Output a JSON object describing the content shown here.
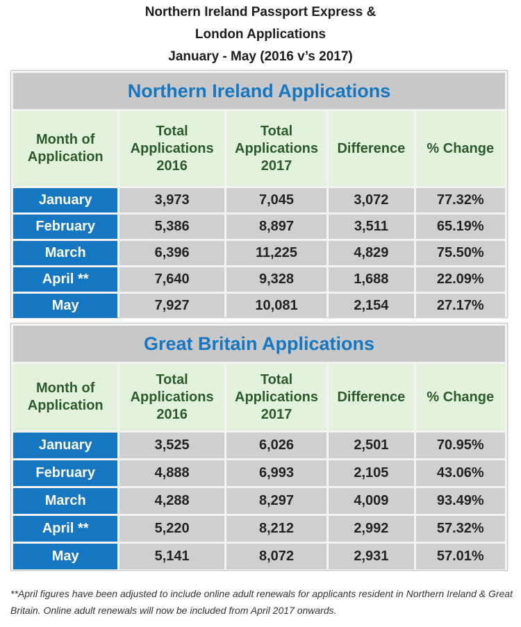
{
  "heading": {
    "line1": "Northern Ireland Passport Express &",
    "line2": "London Applications",
    "line3": "January - May (2016 v’s 2017)"
  },
  "columns": {
    "month": "Month of Application",
    "total_2016": "Total Applications 2016",
    "total_2017": "Total Applications 2017",
    "difference": "Difference",
    "pct_change": "% Change"
  },
  "tables": {
    "ni": {
      "title": "Northern Ireland Applications",
      "rows": [
        {
          "month": "January",
          "y2016": "3,973",
          "y2017": "7,045",
          "diff": "3,072",
          "pct": "77.32%"
        },
        {
          "month": "February",
          "y2016": "5,386",
          "y2017": "8,897",
          "diff": "3,511",
          "pct": "65.19%"
        },
        {
          "month": "March",
          "y2016": "6,396",
          "y2017": "11,225",
          "diff": "4,829",
          "pct": "75.50%"
        },
        {
          "month": "April **",
          "y2016": "7,640",
          "y2017": "9,328",
          "diff": "1,688",
          "pct": "22.09%"
        },
        {
          "month": "May",
          "y2016": "7,927",
          "y2017": "10,081",
          "diff": "2,154",
          "pct": "27.17%"
        }
      ]
    },
    "gb": {
      "title": "Great Britain Applications",
      "rows": [
        {
          "month": "January",
          "y2016": "3,525",
          "y2017": "6,026",
          "diff": "2,501",
          "pct": "70.95%"
        },
        {
          "month": "February",
          "y2016": "4,888",
          "y2017": "6,993",
          "diff": "2,105",
          "pct": "43.06%"
        },
        {
          "month": "March",
          "y2016": "4,288",
          "y2017": "8,297",
          "diff": "4,009",
          "pct": "93.49%"
        },
        {
          "month": "April **",
          "y2016": "5,220",
          "y2017": "8,212",
          "diff": "2,992",
          "pct": "57.32%"
        },
        {
          "month": "May",
          "y2016": "5,141",
          "y2017": "8,072",
          "diff": "2,931",
          "pct": "57.01%"
        }
      ]
    }
  },
  "footnote": "**April figures have been adjusted to include online adult renewals for applicants resident in Northern Ireland & Great Britain. Online adult renewals will now be included from April 2017 onwards.",
  "colors": {
    "title_text": "#1577c2",
    "title_bg": "#c8c8c8",
    "header_bg": "#e3f2dc",
    "header_text": "#2b5a2b",
    "month_bg": "#1577c2",
    "value_bg": "#cfcfcf"
  }
}
